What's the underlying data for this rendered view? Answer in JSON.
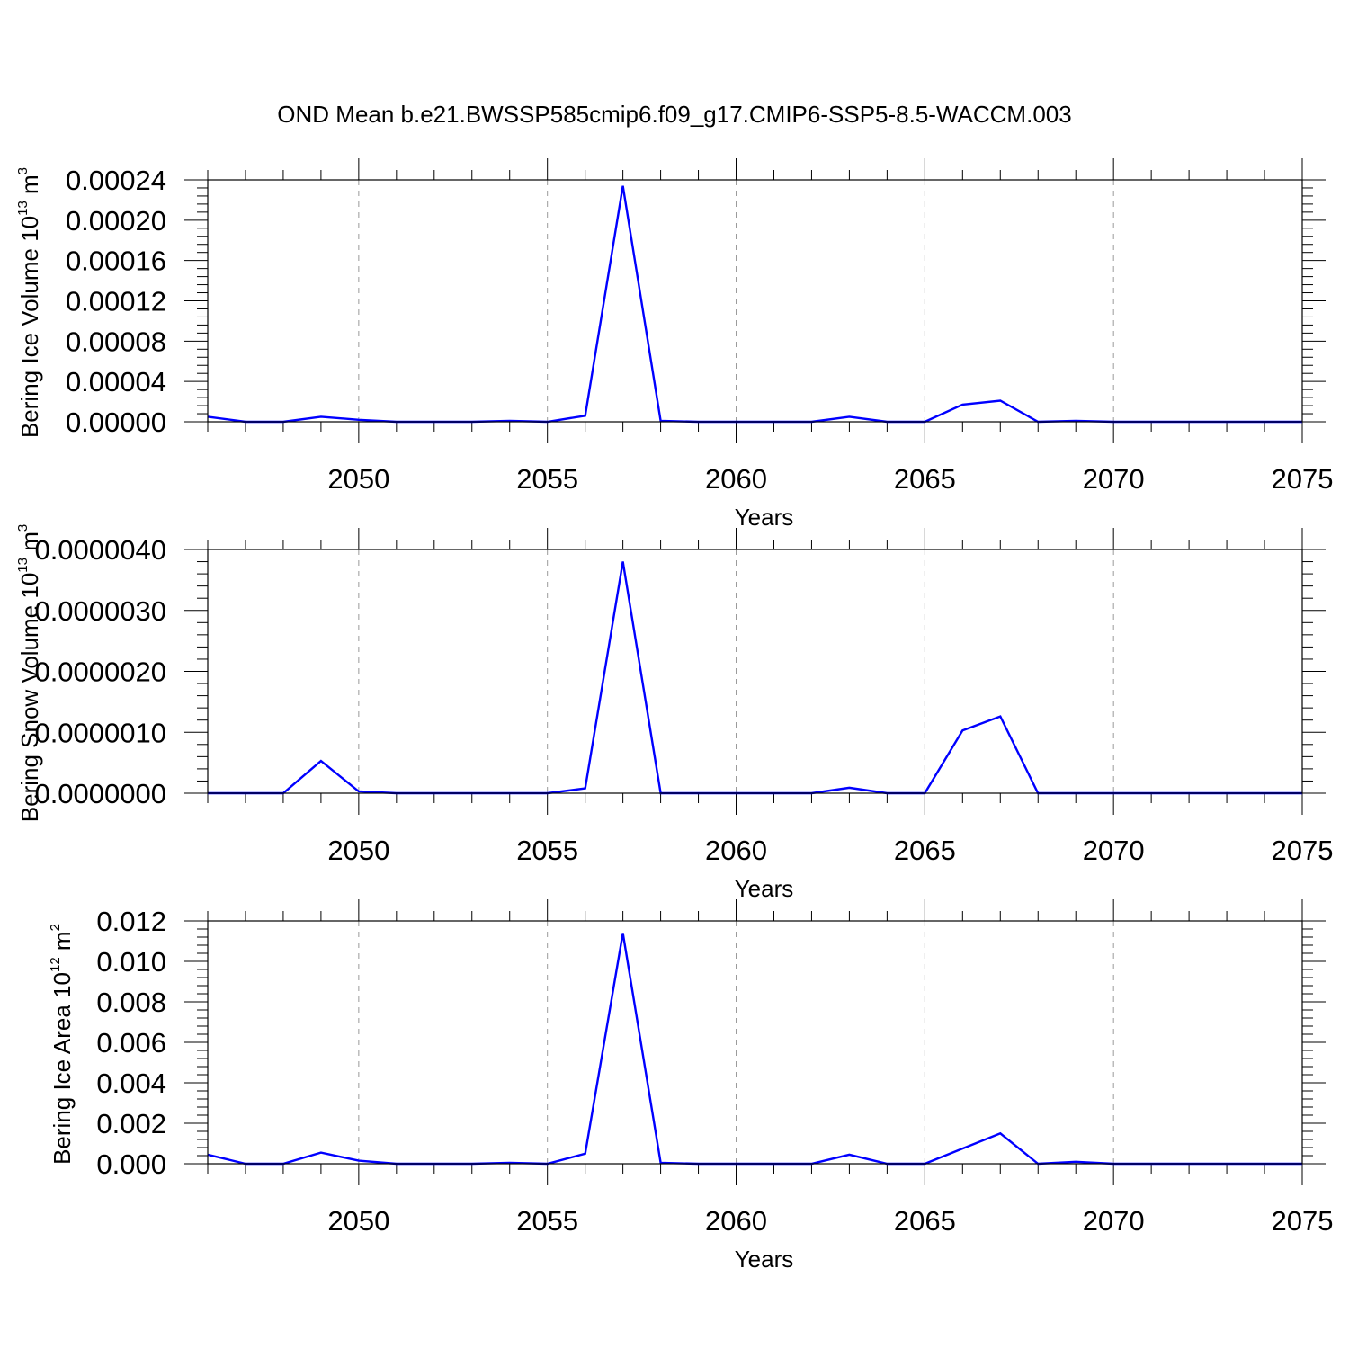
{
  "title": "OND Mean b.e21.BWSSP585cmip6.f09_g17.CMIP6-SSP5-8.5-WACCM.003",
  "chart_data": [
    {
      "type": "line",
      "xlabel": "Years",
      "ylabel_main": "Bering Ice Volume 10",
      "ylabel_sup": "13",
      "ylabel_unit": " m",
      "ylabel_unit_sup": "3",
      "xlim": [
        2046,
        2075
      ],
      "ylim": [
        0,
        0.00024
      ],
      "x_ticks": [
        2050,
        2055,
        2060,
        2065,
        2070,
        2075
      ],
      "y_ticks": [
        0,
        4e-05,
        8e-05,
        0.00012,
        0.00016,
        0.0002,
        0.00024
      ],
      "y_tick_labels": [
        "0.00000",
        "0.00004",
        "0.00008",
        "0.00012",
        "0.00016",
        "0.00020",
        "0.00024"
      ],
      "grid": true,
      "color": "#0000ff",
      "x": [
        2046,
        2047,
        2048,
        2049,
        2050,
        2051,
        2052,
        2053,
        2054,
        2055,
        2056,
        2057,
        2058,
        2059,
        2060,
        2061,
        2062,
        2063,
        2064,
        2065,
        2066,
        2067,
        2068,
        2069,
        2070,
        2071,
        2072,
        2073,
        2074,
        2075
      ],
      "y": [
        5e-06,
        0,
        0,
        5e-06,
        2e-06,
        0,
        0,
        0,
        1e-06,
        0,
        6e-06,
        0.000234,
        1e-06,
        0,
        0,
        0,
        0,
        5e-06,
        0,
        0,
        1.7e-05,
        2.1e-05,
        0,
        1e-06,
        0,
        0,
        0,
        0,
        0,
        0
      ]
    },
    {
      "type": "line",
      "xlabel": "Years",
      "ylabel_main": "Bering Snow Volume 10",
      "ylabel_sup": "13",
      "ylabel_unit": " m",
      "ylabel_unit_sup": "3",
      "xlim": [
        2046,
        2075
      ],
      "ylim": [
        0,
        4e-06
      ],
      "x_ticks": [
        2050,
        2055,
        2060,
        2065,
        2070,
        2075
      ],
      "y_ticks": [
        0,
        1e-06,
        2e-06,
        3e-06,
        4e-06
      ],
      "y_tick_labels": [
        "0.0000000",
        "0.0000010",
        "0.0000020",
        "0.0000030",
        "0.0000040"
      ],
      "grid": true,
      "color": "#0000ff",
      "x": [
        2046,
        2047,
        2048,
        2049,
        2050,
        2051,
        2052,
        2053,
        2054,
        2055,
        2056,
        2057,
        2058,
        2059,
        2060,
        2061,
        2062,
        2063,
        2064,
        2065,
        2066,
        2067,
        2068,
        2069,
        2070,
        2071,
        2072,
        2073,
        2074,
        2075
      ],
      "y": [
        0,
        0,
        0,
        5.3e-07,
        3e-08,
        0,
        0,
        0,
        0,
        0,
        8e-08,
        3.8e-06,
        0,
        0,
        0,
        0,
        0,
        9e-08,
        0,
        0,
        1.03e-06,
        1.26e-06,
        0,
        0,
        0,
        0,
        0,
        0,
        0,
        0
      ]
    },
    {
      "type": "line",
      "xlabel": "Years",
      "ylabel_main": "Bering Ice Area 10",
      "ylabel_sup": "12",
      "ylabel_unit": " m",
      "ylabel_unit_sup": "2",
      "xlim": [
        2046,
        2075
      ],
      "ylim": [
        0,
        0.012
      ],
      "x_ticks": [
        2050,
        2055,
        2060,
        2065,
        2070,
        2075
      ],
      "y_ticks": [
        0,
        0.002,
        0.004,
        0.006,
        0.008,
        0.01,
        0.012
      ],
      "y_tick_labels": [
        "0.000",
        "0.002",
        "0.004",
        "0.006",
        "0.008",
        "0.010",
        "0.012"
      ],
      "grid": true,
      "color": "#0000ff",
      "x": [
        2046,
        2047,
        2048,
        2049,
        2050,
        2051,
        2052,
        2053,
        2054,
        2055,
        2056,
        2057,
        2058,
        2059,
        2060,
        2061,
        2062,
        2063,
        2064,
        2065,
        2066,
        2067,
        2068,
        2069,
        2070,
        2071,
        2072,
        2073,
        2074,
        2075
      ],
      "y": [
        0.00045,
        0,
        0,
        0.00055,
        0.00015,
        0,
        0,
        0,
        5e-05,
        0,
        0.0005,
        0.0114,
        5e-05,
        0,
        0,
        0,
        0,
        0.00045,
        0,
        0,
        0.00075,
        0.0015,
        0,
        0.0001,
        0,
        0,
        0,
        0,
        0,
        0
      ]
    }
  ]
}
